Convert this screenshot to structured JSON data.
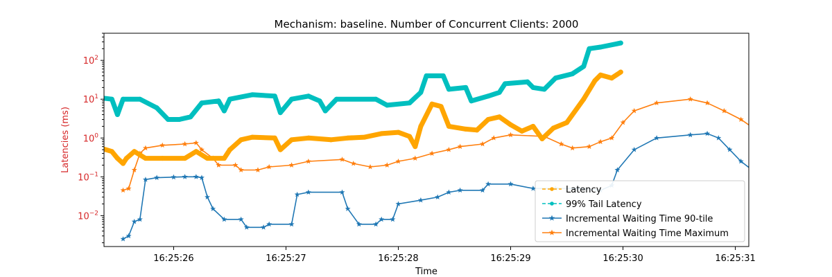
{
  "chart_data": {
    "type": "line",
    "title": "Mechanism: baseline. Number of Concurrent Clients: 2000",
    "xlabel": "Time",
    "ylabel": "Latencies (ms)",
    "yscale": "log",
    "xlim": [
      "16:25:25.38",
      "16:25:31.12"
    ],
    "ylim": [
      0.0016,
      500
    ],
    "x_ticks": [
      "16:25:26",
      "16:25:27",
      "16:25:28",
      "16:25:29",
      "16:25:30",
      "16:25:31"
    ],
    "y_ticks": [
      "10^{-2}",
      "10^{-1}",
      "10^{0}",
      "10^{1}",
      "10^{2}"
    ],
    "grid": false,
    "legend": "lower-right",
    "colors": {
      "axis_label": "#d62728",
      "ytick_label": "#d62728",
      "latency": "#ffa500",
      "tail": "#00bfbf",
      "p90": "#1f77b4",
      "max": "#ff7f0e"
    },
    "series": [
      {
        "name": "Latency",
        "style": "dashed-dot",
        "points": [
          [
            "16:25:25.33",
            0.95
          ],
          [
            "16:25:25.35",
            0.55
          ],
          [
            "16:25:25.45",
            0.45
          ],
          [
            "16:25:25.50",
            0.3
          ],
          [
            "16:25:25.55",
            0.22
          ],
          [
            "16:25:25.58",
            0.3
          ],
          [
            "16:25:25.65",
            0.45
          ],
          [
            "16:25:25.75",
            0.3
          ],
          [
            "16:25:25.90",
            0.3
          ],
          [
            "16:25:26.10",
            0.3
          ],
          [
            "16:25:26.20",
            0.45
          ],
          [
            "16:25:26.30",
            0.3
          ],
          [
            "16:25:26.45",
            0.3
          ],
          [
            "16:25:26.50",
            0.5
          ],
          [
            "16:25:26.60",
            0.9
          ],
          [
            "16:25:26.70",
            1.05
          ],
          [
            "16:25:26.90",
            1.0
          ],
          [
            "16:25:26.95",
            0.5
          ],
          [
            "16:25:27.05",
            0.9
          ],
          [
            "16:25:27.20",
            1.0
          ],
          [
            "16:25:27.40",
            0.9
          ],
          [
            "16:25:27.55",
            1.0
          ],
          [
            "16:25:27.70",
            1.05
          ],
          [
            "16:25:27.85",
            1.3
          ],
          [
            "16:25:28.00",
            1.4
          ],
          [
            "16:25:28.10",
            1.1
          ],
          [
            "16:25:28.15",
            0.6
          ],
          [
            "16:25:28.20",
            2.0
          ],
          [
            "16:25:28.30",
            7.5
          ],
          [
            "16:25:28.38",
            6.5
          ],
          [
            "16:25:28.45",
            2.0
          ],
          [
            "16:25:28.60",
            1.7
          ],
          [
            "16:25:28.70",
            1.6
          ],
          [
            "16:25:28.80",
            3.0
          ],
          [
            "16:25:28.90",
            3.5
          ],
          [
            "16:25:29.00",
            2.2
          ],
          [
            "16:25:29.10",
            1.5
          ],
          [
            "16:25:29.20",
            2.0
          ],
          [
            "16:25:29.28",
            0.95
          ],
          [
            "16:25:29.38",
            1.8
          ],
          [
            "16:25:29.50",
            2.5
          ],
          [
            "16:25:29.65",
            10
          ],
          [
            "16:25:29.75",
            30
          ],
          [
            "16:25:29.80",
            42
          ],
          [
            "16:25:29.90",
            35
          ],
          [
            "16:25:29.98",
            50
          ]
        ]
      },
      {
        "name": "99% Tail Latency",
        "style": "dashed-dot",
        "points": [
          [
            "16:25:25.33",
            11
          ],
          [
            "16:25:25.45",
            10
          ],
          [
            "16:25:25.50",
            4
          ],
          [
            "16:25:25.55",
            10
          ],
          [
            "16:25:25.70",
            10
          ],
          [
            "16:25:25.85",
            6
          ],
          [
            "16:25:25.95",
            3
          ],
          [
            "16:25:26.05",
            3
          ],
          [
            "16:25:26.15",
            3.5
          ],
          [
            "16:25:26.25",
            8
          ],
          [
            "16:25:26.40",
            9
          ],
          [
            "16:25:26.45",
            5
          ],
          [
            "16:25:26.50",
            10
          ],
          [
            "16:25:26.70",
            13
          ],
          [
            "16:25:26.90",
            12
          ],
          [
            "16:25:26.95",
            4.5
          ],
          [
            "16:25:27.05",
            10
          ],
          [
            "16:25:27.20",
            12
          ],
          [
            "16:25:27.30",
            9
          ],
          [
            "16:25:27.35",
            5
          ],
          [
            "16:25:27.45",
            10
          ],
          [
            "16:25:27.80",
            10
          ],
          [
            "16:25:27.90",
            7
          ],
          [
            "16:25:28.10",
            8
          ],
          [
            "16:25:28.20",
            15
          ],
          [
            "16:25:28.25",
            40
          ],
          [
            "16:25:28.40",
            40
          ],
          [
            "16:25:28.45",
            18
          ],
          [
            "16:25:28.60",
            20
          ],
          [
            "16:25:28.65",
            9
          ],
          [
            "16:25:28.80",
            12
          ],
          [
            "16:25:28.90",
            15
          ],
          [
            "16:25:28.95",
            25
          ],
          [
            "16:25:29.15",
            28
          ],
          [
            "16:25:29.20",
            20
          ],
          [
            "16:25:29.30",
            18
          ],
          [
            "16:25:29.40",
            35
          ],
          [
            "16:25:29.55",
            45
          ],
          [
            "16:25:29.65",
            70
          ],
          [
            "16:25:29.70",
            200
          ],
          [
            "16:25:29.80",
            220
          ],
          [
            "16:25:29.98",
            280
          ]
        ]
      },
      {
        "name": "Incremental Waiting Time 90-tile",
        "style": "solid-star",
        "points": [
          [
            "16:25:25.55",
            0.0025
          ],
          [
            "16:25:25.60",
            0.003
          ],
          [
            "16:25:25.65",
            0.007
          ],
          [
            "16:25:25.70",
            0.008
          ],
          [
            "16:25:25.75",
            0.085
          ],
          [
            "16:25:25.85",
            0.095
          ],
          [
            "16:25:26.00",
            0.098
          ],
          [
            "16:25:26.10",
            0.1
          ],
          [
            "16:25:26.20",
            0.1
          ],
          [
            "16:25:26.25",
            0.095
          ],
          [
            "16:25:26.30",
            0.03
          ],
          [
            "16:25:26.35",
            0.015
          ],
          [
            "16:25:26.45",
            0.008
          ],
          [
            "16:25:26.60",
            0.008
          ],
          [
            "16:25:26.65",
            0.005
          ],
          [
            "16:25:26.80",
            0.005
          ],
          [
            "16:25:26.85",
            0.006
          ],
          [
            "16:25:27.05",
            0.006
          ],
          [
            "16:25:27.10",
            0.035
          ],
          [
            "16:25:27.20",
            0.04
          ],
          [
            "16:25:27.50",
            0.04
          ],
          [
            "16:25:27.55",
            0.015
          ],
          [
            "16:25:27.65",
            0.006
          ],
          [
            "16:25:27.80",
            0.006
          ],
          [
            "16:25:27.85",
            0.008
          ],
          [
            "16:25:27.95",
            0.008
          ],
          [
            "16:25:28.00",
            0.02
          ],
          [
            "16:25:28.20",
            0.025
          ],
          [
            "16:25:28.35",
            0.03
          ],
          [
            "16:25:28.45",
            0.04
          ],
          [
            "16:25:28.55",
            0.045
          ],
          [
            "16:25:28.75",
            0.045
          ],
          [
            "16:25:28.80",
            0.065
          ],
          [
            "16:25:29.00",
            0.065
          ],
          [
            "16:25:29.20",
            0.05
          ],
          [
            "16:25:29.40",
            0.05
          ],
          [
            "16:25:29.60",
            0.05
          ],
          [
            "16:25:29.80",
            0.045
          ],
          [
            "16:25:29.90",
            0.06
          ],
          [
            "16:25:29.95",
            0.15
          ],
          [
            "16:25:30.10",
            0.5
          ],
          [
            "16:25:30.30",
            1.0
          ],
          [
            "16:25:30.60",
            1.2
          ],
          [
            "16:25:30.75",
            1.3
          ],
          [
            "16:25:30.85",
            1.0
          ],
          [
            "16:25:30.95",
            0.5
          ],
          [
            "16:25:31.05",
            0.25
          ],
          [
            "16:25:31.15",
            0.15
          ],
          [
            "16:25:31.25",
            0.12
          ]
        ]
      },
      {
        "name": "Incremental Waiting Time Maximum",
        "style": "solid-star",
        "points": [
          [
            "16:25:25.55",
            0.045
          ],
          [
            "16:25:25.60",
            0.05
          ],
          [
            "16:25:25.65",
            0.15
          ],
          [
            "16:25:25.70",
            0.4
          ],
          [
            "16:25:25.75",
            0.55
          ],
          [
            "16:25:25.90",
            0.65
          ],
          [
            "16:25:26.10",
            0.7
          ],
          [
            "16:25:26.20",
            0.75
          ],
          [
            "16:25:26.25",
            0.5
          ],
          [
            "16:25:26.35",
            0.3
          ],
          [
            "16:25:26.40",
            0.2
          ],
          [
            "16:25:26.55",
            0.2
          ],
          [
            "16:25:26.60",
            0.15
          ],
          [
            "16:25:26.75",
            0.15
          ],
          [
            "16:25:26.85",
            0.18
          ],
          [
            "16:25:27.05",
            0.2
          ],
          [
            "16:25:27.20",
            0.25
          ],
          [
            "16:25:27.50",
            0.28
          ],
          [
            "16:25:27.60",
            0.22
          ],
          [
            "16:25:27.75",
            0.18
          ],
          [
            "16:25:27.90",
            0.2
          ],
          [
            "16:25:28.00",
            0.25
          ],
          [
            "16:25:28.15",
            0.3
          ],
          [
            "16:25:28.30",
            0.4
          ],
          [
            "16:25:28.45",
            0.5
          ],
          [
            "16:25:28.55",
            0.6
          ],
          [
            "16:25:28.75",
            0.7
          ],
          [
            "16:25:28.85",
            1.0
          ],
          [
            "16:25:29.00",
            1.2
          ],
          [
            "16:25:29.30",
            1.1
          ],
          [
            "16:25:29.45",
            0.7
          ],
          [
            "16:25:29.55",
            0.55
          ],
          [
            "16:25:29.70",
            0.6
          ],
          [
            "16:25:29.80",
            0.8
          ],
          [
            "16:25:29.90",
            1.0
          ],
          [
            "16:25:30.00",
            2.5
          ],
          [
            "16:25:30.10",
            5.0
          ],
          [
            "16:25:30.30",
            8.0
          ],
          [
            "16:25:30.60",
            10
          ],
          [
            "16:25:30.75",
            8.0
          ],
          [
            "16:25:30.90",
            5.0
          ],
          [
            "16:25:31.05",
            3.0
          ],
          [
            "16:25:31.20",
            1.5
          ],
          [
            "16:25:31.25",
            1.2
          ]
        ]
      }
    ]
  }
}
